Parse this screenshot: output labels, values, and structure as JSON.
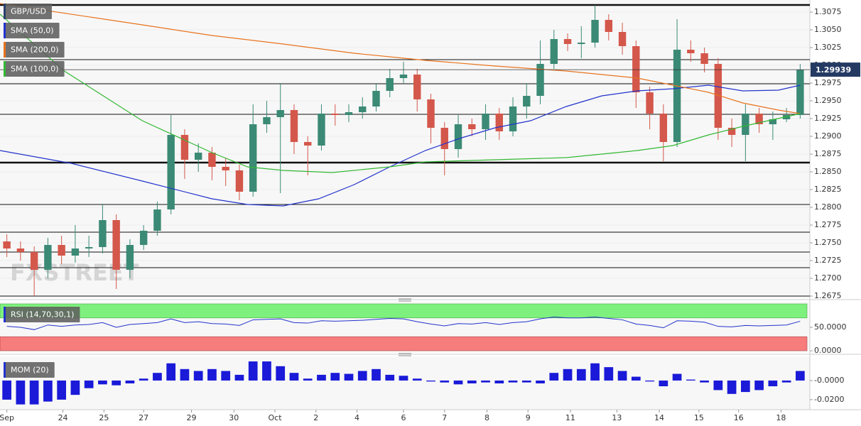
{
  "chart_data": [
    {
      "type": "candlestick",
      "candles": {
        "name": "GBP/USD",
        "legend_color": "#2b3f6e",
        "up_color": "#3b8a75",
        "down_color": "#d4574b",
        "open": [
          1.2752,
          1.2742,
          1.2737,
          1.2712,
          1.2747,
          1.2732,
          1.2742,
          1.2744,
          1.2782,
          1.2712,
          1.2747,
          1.2767,
          1.2797,
          1.2902,
          1.2867,
          1.2877,
          1.2857,
          1.2852,
          1.2822,
          1.2917,
          1.2927,
          1.2937,
          1.2892,
          1.2887,
          1.2932,
          1.293,
          1.2934,
          1.2942,
          1.2964,
          1.2982,
          1.2987,
          1.2952,
          1.2912,
          1.2882,
          1.2917,
          1.291,
          1.2932,
          1.2907,
          1.2942,
          1.2957,
          1.3002,
          1.3037,
          1.303,
          1.3032,
          1.3064,
          1.3047,
          1.3027,
          1.2962,
          1.2932,
          1.2892,
          1.3022,
          1.3017,
          1.3002,
          1.2912,
          1.2902,
          1.2932,
          1.2917,
          1.2924,
          1.293
        ],
        "high": [
          1.2762,
          1.2752,
          1.2745,
          1.2757,
          1.276,
          1.2775,
          1.276,
          1.2805,
          1.279,
          1.2755,
          1.2775,
          1.2808,
          1.293,
          1.291,
          1.289,
          1.2885,
          1.287,
          1.286,
          1.2945,
          1.295,
          1.2975,
          1.2945,
          1.29,
          1.2945,
          1.2945,
          1.2945,
          1.2955,
          1.2975,
          1.2995,
          1.3005,
          1.2995,
          1.296,
          1.292,
          1.293,
          1.2925,
          1.2945,
          1.294,
          1.2955,
          1.2975,
          1.3035,
          1.305,
          1.3045,
          1.3055,
          1.3085,
          1.3072,
          1.306,
          1.3035,
          1.297,
          1.2945,
          1.3065,
          1.3035,
          1.3025,
          1.301,
          1.2925,
          1.2945,
          1.294,
          1.2935,
          1.294,
          1.3002
        ],
        "low": [
          1.273,
          1.2725,
          1.2675,
          1.27,
          1.272,
          1.2722,
          1.273,
          1.2735,
          1.2685,
          1.27,
          1.274,
          1.276,
          1.279,
          1.284,
          1.285,
          1.2838,
          1.283,
          1.281,
          1.2815,
          1.2905,
          1.282,
          1.2875,
          1.2845,
          1.288,
          1.2915,
          1.292,
          1.2925,
          1.2935,
          1.2955,
          1.2975,
          1.2935,
          1.289,
          1.2845,
          1.287,
          1.29,
          1.2895,
          1.2895,
          1.29,
          1.2925,
          1.2945,
          1.2995,
          1.302,
          1.301,
          1.3025,
          1.3035,
          1.3015,
          1.294,
          1.291,
          1.2865,
          1.2885,
          1.3005,
          1.299,
          1.2895,
          1.2885,
          1.2865,
          1.2905,
          1.2895,
          1.292,
          1.2925
        ],
        "close": [
          1.2742,
          1.2737,
          1.2712,
          1.2747,
          1.2732,
          1.2742,
          1.2744,
          1.2782,
          1.2712,
          1.2747,
          1.2767,
          1.2797,
          1.2902,
          1.2867,
          1.2877,
          1.2857,
          1.2852,
          1.2822,
          1.2917,
          1.2927,
          1.2937,
          1.2892,
          1.2887,
          1.2932,
          1.293,
          1.2934,
          1.2942,
          1.2964,
          1.2982,
          1.2987,
          1.2952,
          1.2912,
          1.2882,
          1.2917,
          1.291,
          1.2932,
          1.2907,
          1.2942,
          1.2957,
          1.3002,
          1.3037,
          1.303,
          1.3032,
          1.3064,
          1.3047,
          1.3027,
          1.2962,
          1.2932,
          1.2892,
          1.3022,
          1.3017,
          1.3002,
          1.2912,
          1.2902,
          1.2932,
          1.2917,
          1.2924,
          1.293,
          1.2994
        ]
      },
      "series": [
        {
          "name": "SMA (50,0)",
          "color": "#2233cc",
          "x": [
            0,
            5.2,
            10.4,
            15.5,
            18.1,
            20.7,
            23.3,
            25.9,
            28.5,
            31.1,
            33.6,
            36.2,
            38.8,
            41.4,
            44.0,
            46.6,
            49.2,
            51.8,
            54.3,
            56.9,
            58.5
          ],
          "values": [
            1.288,
            1.2862,
            1.2837,
            1.2812,
            1.2804,
            1.2802,
            1.2812,
            1.2832,
            1.2857,
            1.288,
            1.2897,
            1.2912,
            1.2922,
            1.2942,
            1.2957,
            1.2964,
            1.2967,
            1.2972,
            1.2964,
            1.2965,
            1.2972
          ]
        },
        {
          "name": "SMA (200,0)",
          "color": "#e8731e",
          "x": [
            0,
            10.4,
            15.5,
            20.7,
            25.9,
            31.1,
            36.2,
            41.4,
            46.6,
            51.8,
            54.3,
            56.9,
            58.5
          ],
          "values": [
            1.3087,
            1.3057,
            1.3042,
            1.303,
            1.3017,
            1.3007,
            1.2999,
            1.2992,
            1.2982,
            1.2962,
            1.2947,
            1.2937,
            1.2932
          ]
        },
        {
          "name": "SMA (100,0)",
          "color": "#33b833",
          "x": [
            0,
            4.7,
            10.4,
            15.5,
            18.1,
            20.7,
            24.3,
            28.5,
            31.1,
            36.2,
            41.4,
            46.6,
            49.2,
            51.8,
            54.3,
            58.5
          ],
          "values": [
            1.3072,
            1.2992,
            1.2922,
            1.2877,
            1.2857,
            1.2852,
            1.2849,
            1.2857,
            1.2864,
            1.2867,
            1.287,
            1.288,
            1.2887,
            1.2902,
            1.2914,
            1.2932
          ]
        }
      ],
      "xlim": [
        0,
        59
      ],
      "ylim": [
        1.2672,
        1.3092
      ],
      "yticks": [
        {
          "value": 1.3075,
          "label": "1.3075"
        },
        {
          "value": 1.305,
          "label": "1.3050"
        },
        {
          "value": 1.3025,
          "label": "1.3025"
        },
        {
          "value": 1.3,
          "label": "1.3000"
        },
        {
          "value": 1.2975,
          "label": "1.2975"
        },
        {
          "value": 1.295,
          "label": "1.2950"
        },
        {
          "value": 1.2925,
          "label": "1.2925"
        },
        {
          "value": 1.29,
          "label": "1.2900"
        },
        {
          "value": 1.2875,
          "label": "1.2875"
        },
        {
          "value": 1.285,
          "label": "1.2850"
        },
        {
          "value": 1.2825,
          "label": "1.2825"
        },
        {
          "value": 1.28,
          "label": "1.2800"
        },
        {
          "value": 1.2775,
          "label": "1.2775"
        },
        {
          "value": 1.275,
          "label": "1.2750"
        },
        {
          "value": 1.2725,
          "label": "1.2725"
        },
        {
          "value": 1.27,
          "label": "1.2700"
        },
        {
          "value": 1.2675,
          "label": "1.2675"
        }
      ],
      "levels": [
        {
          "value": 1.3085,
          "bold": true
        },
        {
          "value": 1.3008,
          "bold": false
        },
        {
          "value": 1.2974,
          "bold": false
        },
        {
          "value": 1.2931,
          "bold": false
        },
        {
          "value": 1.2863,
          "bold": true
        },
        {
          "value": 1.2804,
          "bold": false
        },
        {
          "value": 1.2765,
          "bold": false
        },
        {
          "value": 1.2737,
          "bold": false
        },
        {
          "value": 1.2715,
          "bold": false
        },
        {
          "value": 1.2675,
          "bold": false
        }
      ],
      "last_price": 1.29939,
      "last_price_color": "#243a63",
      "watermark": "FXSTREET",
      "grid": true
    },
    {
      "type": "line",
      "name": "RSI (14,70,30,1)",
      "color": "#2233cc",
      "legend_color": "#2233cc",
      "values": [
        52,
        50,
        45,
        55,
        52,
        55,
        56,
        60,
        50,
        56,
        58,
        60,
        68,
        60,
        62,
        58,
        57,
        54,
        66,
        67,
        68,
        60,
        59,
        64,
        63,
        64,
        65,
        67,
        69,
        68,
        62,
        57,
        53,
        58,
        57,
        60,
        56,
        60,
        62,
        68,
        72,
        70,
        70,
        72,
        69,
        66,
        57,
        54,
        49,
        64,
        63,
        61,
        52,
        51,
        54,
        53,
        54,
        55,
        63
      ],
      "overbought": 70,
      "oversold": 30,
      "overbought_color": "#7ef07e",
      "oversold_color": "#f77c7c",
      "xlim": [
        0,
        59
      ],
      "ylim": [
        0,
        100
      ],
      "yticks": [
        {
          "value": 50,
          "label": "50.0000"
        },
        {
          "value": 0,
          "label": "0.0000"
        }
      ]
    },
    {
      "type": "bar",
      "name": "MOM (20)",
      "color": "#1a1ad8",
      "legend_color": "#2233cc",
      "values": [
        -0.02,
        -0.025,
        -0.025,
        -0.022,
        -0.02,
        -0.015,
        -0.008,
        -0.004,
        -0.005,
        -0.003,
        0.002,
        0.008,
        0.018,
        0.012,
        0.01,
        0.012,
        0.01,
        0.006,
        0.02,
        0.02,
        0.015,
        0.008,
        0.002,
        0.006,
        0.008,
        0.007,
        0.01,
        0.012,
        0.006,
        0.005,
        0.002,
        -0.001,
        -0.002,
        -0.004,
        -0.003,
        -0.002,
        -0.003,
        -0.002,
        -0.002,
        -0.003,
        0.008,
        0.012,
        0.012,
        0.018,
        0.014,
        0.01,
        0.004,
        -0.001,
        -0.006,
        0.007,
        0.001,
        -0.002,
        -0.01,
        -0.014,
        -0.012,
        -0.01,
        -0.006,
        -0.002,
        0.01
      ],
      "xlim": [
        0,
        59
      ],
      "ylim": [
        -0.029,
        0.023
      ],
      "yticks": [
        {
          "value": 0,
          "label": "-0.0000"
        },
        {
          "value": -0.02,
          "label": "-0.0200"
        }
      ],
      "xticks": [
        {
          "value": 0.5,
          "label": "Sep"
        },
        {
          "value": 4.6,
          "label": "24"
        },
        {
          "value": 7.6,
          "label": "25"
        },
        {
          "value": 10.5,
          "label": "27"
        },
        {
          "value": 14.0,
          "label": "29"
        },
        {
          "value": 17.1,
          "label": "30"
        },
        {
          "value": 20.1,
          "label": "Oct"
        },
        {
          "value": 23.1,
          "label": "2"
        },
        {
          "value": 26.1,
          "label": "4"
        },
        {
          "value": 29.5,
          "label": "6"
        },
        {
          "value": 32.5,
          "label": "7"
        },
        {
          "value": 35.6,
          "label": "8"
        },
        {
          "value": 38.6,
          "label": "9"
        },
        {
          "value": 41.7,
          "label": "11"
        },
        {
          "value": 45.1,
          "label": "13"
        },
        {
          "value": 48.2,
          "label": "14"
        },
        {
          "value": 51.1,
          "label": "15"
        },
        {
          "value": 54.0,
          "label": "16"
        },
        {
          "value": 57.1,
          "label": "18"
        }
      ]
    }
  ]
}
